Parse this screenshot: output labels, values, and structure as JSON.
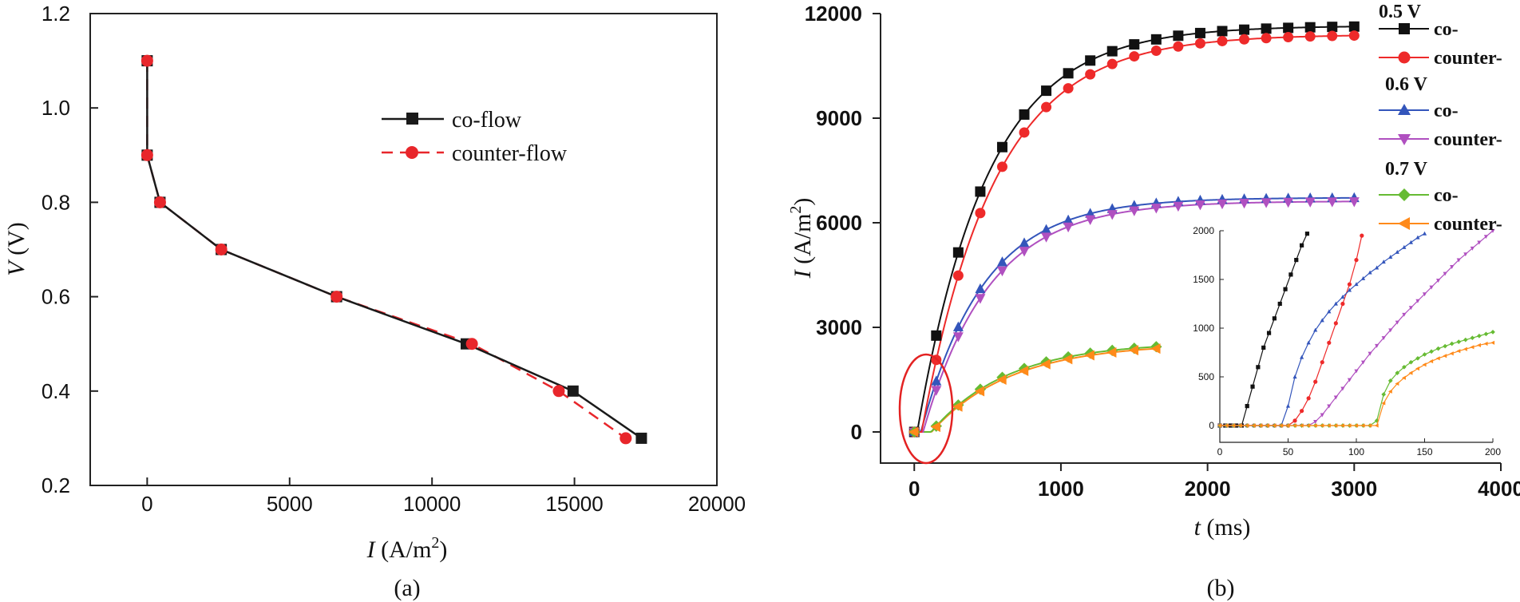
{
  "figure": {
    "panel_a_caption": "(a)",
    "panel_b_caption": "(b)"
  },
  "chart_data": [
    {
      "id": "a",
      "type": "line",
      "xlabel_var": "I",
      "xlabel_unit": "(A/m",
      "xlabel_sup": "2",
      "xlabel_close": ")",
      "ylabel_var": "V",
      "ylabel_unit": " (V)",
      "xlim": [
        -2000,
        20000
      ],
      "ylim": [
        0.2,
        1.2
      ],
      "xticks": [
        0,
        5000,
        10000,
        15000,
        20000
      ],
      "xtick_labels": [
        "0",
        "5000",
        "10000",
        "15000",
        "20000"
      ],
      "yticks": [
        0.2,
        0.4,
        0.6,
        0.8,
        1.0,
        1.2
      ],
      "ytick_labels": [
        "0.2",
        "0.4",
        "0.6",
        "0.8",
        "1.0",
        "1.2"
      ],
      "legend_position": "upper-right",
      "series": [
        {
          "name": "co-flow",
          "color": "#1a1a1a",
          "marker": "square",
          "dash": "solid",
          "x": [
            0,
            0,
            450,
            2600,
            6650,
            11200,
            14950,
            17350
          ],
          "y": [
            1.1,
            0.9,
            0.8,
            0.7,
            0.6,
            0.5,
            0.4,
            0.3
          ]
        },
        {
          "name": "counter-flow",
          "color": "#e8262b",
          "marker": "circle",
          "dash": "dashed",
          "x": [
            0,
            0,
            450,
            2600,
            6650,
            11400,
            14450,
            16800
          ],
          "y": [
            1.1,
            0.9,
            0.8,
            0.7,
            0.6,
            0.5,
            0.4,
            0.3
          ]
        }
      ]
    },
    {
      "id": "b",
      "type": "line",
      "xlabel_var": "t",
      "xlabel_unit": " (ms)",
      "ylabel_var": "I",
      "ylabel_unit": " (A/m",
      "ylabel_sup": "2",
      "ylabel_close": ")",
      "xlim": [
        -230,
        4000
      ],
      "ylim": [
        -1000,
        12000
      ],
      "xticks": [
        0,
        1000,
        2000,
        3000,
        4000
      ],
      "xtick_labels": [
        "0",
        "1000",
        "2000",
        "3000",
        "4000"
      ],
      "yticks": [
        0,
        3000,
        6000,
        9000,
        12000
      ],
      "ytick_labels": [
        "0",
        "3000",
        "6000",
        "9000",
        "12000"
      ],
      "legend_position": "right",
      "legend_groups": [
        "0.5 V",
        "0.6 V",
        "0.7 V"
      ],
      "series": [
        {
          "name": "co-",
          "group": "0.5 V",
          "color": "#111111",
          "marker": "square",
          "delay": 20,
          "plateau": 11650,
          "tau": 480,
          "tmax": 3000
        },
        {
          "name": "counter-",
          "group": "0.5 V",
          "color": "#ee2a2a",
          "marker": "circle",
          "delay": 50,
          "plateau": 11400,
          "tau": 500,
          "tmax": 3000
        },
        {
          "name": "co-",
          "group": "0.6 V",
          "color": "#3355bb",
          "marker": "triangle-up",
          "delay": 45,
          "plateau": 6720,
          "tau": 430,
          "tmax": 3000
        },
        {
          "name": "counter-",
          "group": "0.6 V",
          "color": "#b050c0",
          "marker": "triangle-down",
          "delay": 60,
          "plateau": 6620,
          "tau": 450,
          "tmax": 3000
        },
        {
          "name": "co-",
          "group": "0.7 V",
          "color": "#66bb33",
          "marker": "diamond",
          "delay": 115,
          "plateau": 2580,
          "tau": 520,
          "tmax": 1650
        },
        {
          "name": "counter-",
          "group": "0.7 V",
          "color": "#ff8a1a",
          "marker": "triangle-left",
          "delay": 118,
          "plateau": 2540,
          "tau": 540,
          "tmax": 1650
        }
      ],
      "highlight": "ellipse around t = 0 to 250 ms, I = 0",
      "inset": {
        "xlim": [
          0,
          200
        ],
        "ylim": [
          0,
          2000
        ],
        "xticks": [
          0,
          50,
          100,
          150,
          200
        ],
        "xtick_labels": [
          "0",
          "50",
          "100",
          "150",
          "200"
        ],
        "yticks": [
          0,
          500,
          1000,
          1500,
          2000
        ],
        "ytick_labels": [
          "0",
          "500",
          "1000",
          "1500",
          "2000"
        ],
        "series": [
          {
            "color": "#111111",
            "marker": "square",
            "x": [
              0,
              4,
              8,
              12,
              16,
              20,
              24,
              28,
              32,
              36,
              40,
              44,
              48,
              52,
              56,
              60,
              64
            ],
            "y": [
              0,
              0,
              0,
              0,
              0,
              200,
              400,
              600,
              800,
              950,
              1100,
              1250,
              1400,
              1550,
              1700,
              1850,
              1970
            ]
          },
          {
            "color": "#ee2a2a",
            "marker": "circle",
            "x": [
              0,
              5,
              10,
              15,
              20,
              25,
              30,
              35,
              40,
              45,
              50,
              55,
              60,
              65,
              70,
              75,
              80,
              85,
              90,
              95,
              100,
              104
            ],
            "y": [
              0,
              0,
              0,
              0,
              0,
              0,
              0,
              0,
              0,
              0,
              0,
              50,
              150,
              280,
              450,
              650,
              850,
              1050,
              1250,
              1450,
              1700,
              1950
            ]
          },
          {
            "color": "#3355bb",
            "marker": "triangle-up",
            "x": [
              0,
              5,
              10,
              15,
              20,
              25,
              30,
              35,
              40,
              45,
              50,
              55,
              60,
              65,
              70,
              75,
              80,
              85,
              90,
              95,
              100,
              105,
              110,
              115,
              120,
              125,
              130,
              135,
              140,
              145,
              150
            ],
            "y": [
              0,
              0,
              0,
              0,
              0,
              0,
              0,
              0,
              0,
              0,
              200,
              500,
              700,
              850,
              980,
              1080,
              1170,
              1250,
              1320,
              1390,
              1450,
              1510,
              1570,
              1620,
              1680,
              1730,
              1780,
              1830,
              1880,
              1930,
              1970
            ]
          },
          {
            "color": "#b050c0",
            "marker": "triangle-down",
            "x": [
              0,
              5,
              10,
              15,
              20,
              25,
              30,
              35,
              40,
              45,
              50,
              55,
              60,
              65,
              70,
              75,
              80,
              85,
              90,
              95,
              100,
              105,
              110,
              115,
              120,
              125,
              130,
              135,
              140,
              145,
              150,
              155,
              160,
              165,
              170,
              175,
              180,
              185,
              190,
              195,
              200
            ],
            "y": [
              0,
              0,
              0,
              0,
              0,
              0,
              0,
              0,
              0,
              0,
              0,
              0,
              0,
              0,
              40,
              110,
              200,
              290,
              380,
              470,
              560,
              650,
              740,
              820,
              900,
              980,
              1060,
              1140,
              1210,
              1280,
              1350,
              1420,
              1490,
              1560,
              1630,
              1700,
              1760,
              1820,
              1880,
              1940,
              2000
            ]
          },
          {
            "color": "#66bb33",
            "marker": "diamond",
            "x": [
              0,
              5,
              10,
              15,
              20,
              25,
              30,
              35,
              40,
              45,
              50,
              55,
              60,
              65,
              70,
              75,
              80,
              85,
              90,
              95,
              100,
              105,
              110,
              115,
              120,
              125,
              130,
              135,
              140,
              145,
              150,
              155,
              160,
              165,
              170,
              175,
              180,
              185,
              190,
              195,
              200
            ],
            "y": [
              0,
              0,
              0,
              0,
              0,
              0,
              0,
              0,
              0,
              0,
              0,
              0,
              0,
              0,
              0,
              0,
              0,
              0,
              0,
              0,
              0,
              0,
              0,
              50,
              320,
              460,
              540,
              600,
              650,
              690,
              730,
              760,
              790,
              815,
              840,
              860,
              880,
              900,
              920,
              940,
              960
            ]
          },
          {
            "color": "#ff8a1a",
            "marker": "triangle-left",
            "x": [
              0,
              5,
              10,
              15,
              20,
              25,
              30,
              35,
              40,
              45,
              50,
              55,
              60,
              65,
              70,
              75,
              80,
              85,
              90,
              95,
              100,
              105,
              110,
              115,
              120,
              125,
              130,
              135,
              140,
              145,
              150,
              155,
              160,
              165,
              170,
              175,
              180,
              185,
              190,
              195,
              200
            ],
            "y": [
              0,
              0,
              0,
              0,
              0,
              0,
              0,
              0,
              0,
              0,
              0,
              0,
              0,
              0,
              0,
              0,
              0,
              0,
              0,
              0,
              0,
              0,
              0,
              0,
              230,
              350,
              430,
              490,
              540,
              585,
              625,
              660,
              690,
              715,
              740,
              765,
              785,
              805,
              825,
              840,
              850
            ]
          }
        ]
      }
    }
  ]
}
